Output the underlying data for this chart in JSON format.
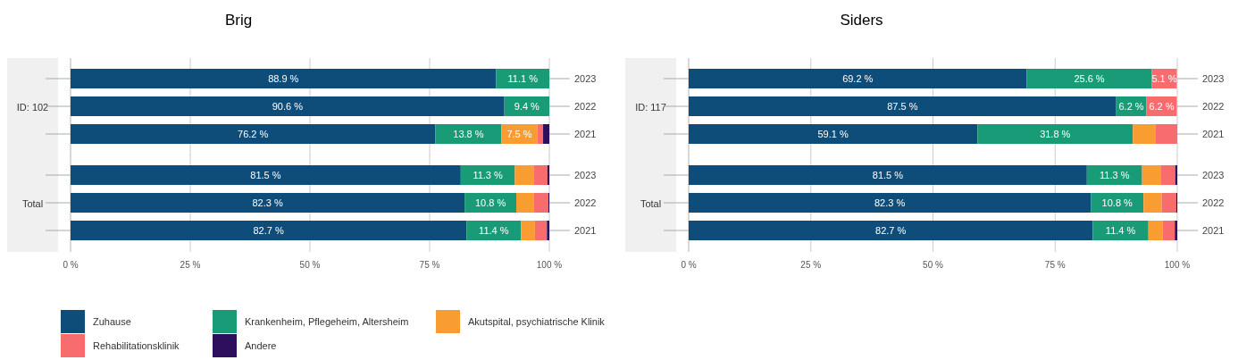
{
  "chart_data": [
    {
      "type": "bar",
      "title": "Brig",
      "ylabel": "ID: 102",
      "orientation": "horizontal",
      "stacked": true,
      "grid": "x",
      "legend": "bottom",
      "categories": [
        "2023",
        "2022",
        "2021"
      ],
      "xlim": [
        0,
        100
      ],
      "xticks": [
        {
          "value": 0,
          "label": null
        },
        {
          "value": 25,
          "label": null
        },
        {
          "value": 50,
          "label": null
        },
        {
          "value": 75,
          "label": null
        },
        {
          "value": 100,
          "label": null
        }
      ],
      "series": [
        {
          "name": "Zuhause",
          "color": "#0e4d7a",
          "values": [
            88.9,
            90.6,
            76.2
          ],
          "value_labels": [
            "88.9 %",
            "90.6 %",
            "76.2 %"
          ]
        },
        {
          "name": "Krankenheim, Pflegeheim, Altersheim",
          "color": "#1a9b78",
          "values": [
            11.1,
            9.4,
            13.8
          ],
          "value_labels": [
            "11.1 %",
            "9.4 %",
            "13.8 %"
          ]
        },
        {
          "name": "Akutspital, psychiatrische Klinik",
          "color": "#f99d33",
          "values": [
            0,
            0,
            7.5
          ],
          "value_labels": [
            null,
            null,
            "7.5 %"
          ]
        },
        {
          "name": "Rehabilitationsklinik",
          "color": "#f86c6e",
          "values": [
            0,
            0,
            1.2
          ]
        },
        {
          "name": "Andere",
          "color": "#2d0f5e",
          "values": [
            0,
            0,
            1.3
          ]
        }
      ]
    },
    {
      "type": "bar",
      "ylabel": "Total",
      "orientation": "horizontal",
      "stacked": true,
      "grid": "x",
      "categories": [
        "2023",
        "2022",
        "2021"
      ],
      "xlim": [
        0,
        100
      ],
      "xticks": [
        {
          "value": 0,
          "label": "0 %"
        },
        {
          "value": 25,
          "label": "25 %"
        },
        {
          "value": 50,
          "label": "50 %"
        },
        {
          "value": 75,
          "label": "75 %"
        },
        {
          "value": 100,
          "label": "100 %"
        }
      ],
      "series": [
        {
          "color": "#0e4d7a",
          "values": [
            81.5,
            82.3,
            82.7
          ],
          "value_labels": [
            "81.5 %",
            "82.3 %",
            "82.7 %"
          ]
        },
        {
          "color": "#1a9b78",
          "values": [
            11.3,
            10.8,
            11.4
          ],
          "value_labels": [
            "11.3 %",
            "10.8 %",
            "11.4 %"
          ]
        },
        {
          "color": "#f99d33",
          "values": [
            3.9,
            3.7,
            2.9
          ]
        },
        {
          "color": "#f86c6e",
          "values": [
            2.9,
            3.0,
            2.5
          ]
        },
        {
          "color": "#2d0f5e",
          "values": [
            0.4,
            0.2,
            0.5
          ]
        }
      ]
    },
    {
      "type": "bar",
      "title": "Siders",
      "ylabel": "ID: 117",
      "orientation": "horizontal",
      "stacked": true,
      "grid": "x",
      "categories": [
        "2023",
        "2022",
        "2021"
      ],
      "xlim": [
        0,
        100
      ],
      "xticks": [
        {
          "value": 0,
          "label": null
        },
        {
          "value": 25,
          "label": null
        },
        {
          "value": 50,
          "label": null
        },
        {
          "value": 75,
          "label": null
        },
        {
          "value": 100,
          "label": null
        }
      ],
      "series": [
        {
          "color": "#0e4d7a",
          "values": [
            69.2,
            87.5,
            59.1
          ],
          "value_labels": [
            "69.2 %",
            "87.5 %",
            "59.1 %"
          ]
        },
        {
          "color": "#1a9b78",
          "values": [
            25.6,
            6.2,
            31.8
          ],
          "value_labels": [
            "25.6 %",
            "6.2 %",
            "31.8 %"
          ]
        },
        {
          "color": "#f99d33",
          "values": [
            0,
            0,
            4.6
          ]
        },
        {
          "color": "#f86c6e",
          "values": [
            5.1,
            6.2,
            4.5
          ],
          "value_labels": [
            "5.1 %",
            "6.2 %",
            null
          ]
        },
        {
          "color": "#2d0f5e",
          "values": [
            0,
            0,
            0
          ]
        }
      ]
    },
    {
      "type": "bar",
      "ylabel": "Total",
      "orientation": "horizontal",
      "stacked": true,
      "grid": "x",
      "categories": [
        "2023",
        "2022",
        "2021"
      ],
      "xlim": [
        0,
        100
      ],
      "xticks": [
        {
          "value": 0,
          "label": "0 %"
        },
        {
          "value": 25,
          "label": "25 %"
        },
        {
          "value": 50,
          "label": "50 %"
        },
        {
          "value": 75,
          "label": "75 %"
        },
        {
          "value": 100,
          "label": "100 %"
        }
      ],
      "series": [
        {
          "color": "#0e4d7a",
          "values": [
            81.5,
            82.3,
            82.7
          ],
          "value_labels": [
            "81.5 %",
            "82.3 %",
            "82.7 %"
          ]
        },
        {
          "color": "#1a9b78",
          "values": [
            11.3,
            10.8,
            11.4
          ],
          "value_labels": [
            "11.3 %",
            "10.8 %",
            "11.4 %"
          ]
        },
        {
          "color": "#f99d33",
          "values": [
            3.9,
            3.7,
            2.9
          ]
        },
        {
          "color": "#f86c6e",
          "values": [
            2.9,
            3.0,
            2.5
          ]
        },
        {
          "color": "#2d0f5e",
          "values": [
            0.4,
            0.2,
            0.5
          ]
        }
      ]
    }
  ]
}
